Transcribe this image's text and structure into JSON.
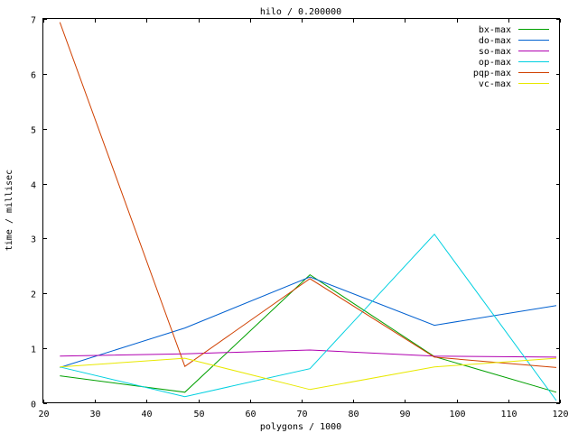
{
  "chart_data": {
    "type": "line",
    "title": "hilo / 0.200000",
    "xlabel": "polygons / 1000",
    "ylabel": "time / millisec",
    "xlim": [
      20,
      120
    ],
    "ylim": [
      0,
      7
    ],
    "xticks": [
      20,
      30,
      40,
      50,
      60,
      70,
      80,
      90,
      100,
      110,
      120
    ],
    "yticks": [
      0,
      1,
      2,
      3,
      4,
      5,
      6,
      7
    ],
    "grid": false,
    "legend_position": "top-right",
    "x": [
      23.2,
      47.4,
      71.6,
      95.7,
      119.3
    ],
    "series": [
      {
        "name": "bx-max",
        "color": "#00a000",
        "values": [
          0.5,
          0.2,
          2.34,
          0.85,
          0.2
        ]
      },
      {
        "name": "do-max",
        "color": "#0060d0",
        "values": [
          0.65,
          1.37,
          2.3,
          1.42,
          1.78
        ]
      },
      {
        "name": "so-max",
        "color": "#b000b0",
        "values": [
          0.86,
          0.9,
          0.97,
          0.86,
          0.84
        ]
      },
      {
        "name": "op-max",
        "color": "#00d0e0",
        "values": [
          0.66,
          0.12,
          0.63,
          3.08,
          0.05
        ]
      },
      {
        "name": "pqp-max",
        "color": "#d04000",
        "values": [
          6.94,
          0.67,
          2.27,
          0.84,
          0.65
        ]
      },
      {
        "name": "vc-max",
        "color": "#e8e800",
        "values": [
          0.66,
          0.82,
          0.25,
          0.66,
          0.82
        ]
      }
    ]
  }
}
